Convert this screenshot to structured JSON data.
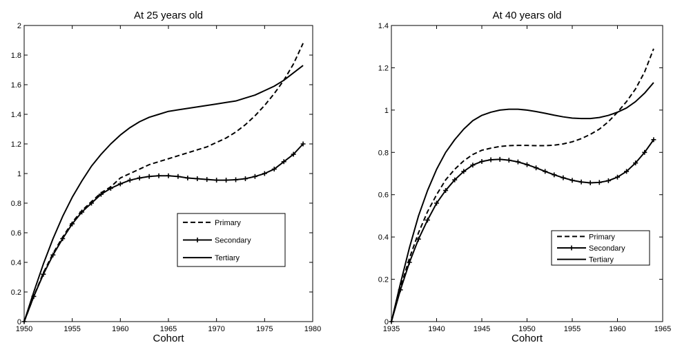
{
  "chart_data": [
    {
      "type": "line",
      "title": "At 25 years old",
      "xlabel": "Cohort",
      "ylabel": "",
      "xlim": [
        1950,
        1980
      ],
      "ylim": [
        0,
        2
      ],
      "xticks": [
        "1950",
        "1955",
        "1960",
        "1965",
        "1970",
        "1975",
        "1980"
      ],
      "yticks": [
        "0",
        "0.2",
        "0.4",
        "0.6",
        "0.8",
        "1",
        "1.2",
        "1.4",
        "1.6",
        "1.8",
        "2"
      ],
      "grid": false,
      "legend_position": "right",
      "series": [
        {
          "name": "Primary",
          "style": "dashed",
          "x": [
            1950,
            1951,
            1952,
            1953,
            1954,
            1955,
            1956,
            1957,
            1958,
            1959,
            1960,
            1961,
            1962,
            1963,
            1964,
            1965,
            1966,
            1967,
            1968,
            1969,
            1970,
            1971,
            1972,
            1973,
            1974,
            1975,
            1976,
            1977,
            1978,
            1979
          ],
          "values": [
            0.0,
            0.17,
            0.33,
            0.46,
            0.57,
            0.67,
            0.75,
            0.81,
            0.87,
            0.91,
            0.97,
            1.0,
            1.03,
            1.06,
            1.08,
            1.1,
            1.12,
            1.14,
            1.16,
            1.18,
            1.21,
            1.24,
            1.28,
            1.33,
            1.39,
            1.46,
            1.54,
            1.63,
            1.74,
            1.88
          ]
        },
        {
          "name": "Secondary",
          "style": "solid-markers",
          "x": [
            1950,
            1951,
            1952,
            1953,
            1954,
            1955,
            1956,
            1957,
            1958,
            1959,
            1960,
            1961,
            1962,
            1963,
            1964,
            1965,
            1966,
            1967,
            1968,
            1969,
            1970,
            1971,
            1972,
            1973,
            1974,
            1975,
            1976,
            1977,
            1978,
            1979
          ],
          "values": [
            0.0,
            0.17,
            0.32,
            0.45,
            0.56,
            0.66,
            0.74,
            0.8,
            0.86,
            0.9,
            0.93,
            0.955,
            0.97,
            0.98,
            0.985,
            0.985,
            0.98,
            0.97,
            0.965,
            0.96,
            0.955,
            0.955,
            0.958,
            0.965,
            0.98,
            1.0,
            1.03,
            1.08,
            1.13,
            1.2
          ]
        },
        {
          "name": "Tertiary",
          "style": "solid",
          "x": [
            1950,
            1951,
            1952,
            1953,
            1954,
            1955,
            1956,
            1957,
            1958,
            1959,
            1960,
            1961,
            1962,
            1963,
            1964,
            1965,
            1966,
            1967,
            1968,
            1969,
            1970,
            1971,
            1972,
            1973,
            1974,
            1975,
            1976,
            1977,
            1978,
            1979
          ],
          "values": [
            0.0,
            0.2,
            0.39,
            0.56,
            0.71,
            0.84,
            0.95,
            1.05,
            1.13,
            1.2,
            1.26,
            1.31,
            1.35,
            1.38,
            1.4,
            1.42,
            1.43,
            1.44,
            1.45,
            1.46,
            1.47,
            1.48,
            1.49,
            1.51,
            1.53,
            1.56,
            1.59,
            1.63,
            1.68,
            1.73
          ]
        }
      ]
    },
    {
      "type": "line",
      "title": "At 40 years old",
      "xlabel": "Cohort",
      "ylabel": "",
      "xlim": [
        1935,
        1965
      ],
      "ylim": [
        0,
        1.4
      ],
      "xticks": [
        "1935",
        "1940",
        "1945",
        "1950",
        "1955",
        "1960",
        "1965"
      ],
      "yticks": [
        "0",
        "0.2",
        "0.4",
        "0.6",
        "0.8",
        "1",
        "1.2",
        "1.4"
      ],
      "grid": false,
      "legend_position": "right",
      "series": [
        {
          "name": "Primary",
          "style": "dashed",
          "x": [
            1935,
            1936,
            1937,
            1938,
            1939,
            1940,
            1941,
            1942,
            1943,
            1944,
            1945,
            1946,
            1947,
            1948,
            1949,
            1950,
            1951,
            1952,
            1953,
            1954,
            1955,
            1956,
            1957,
            1958,
            1959,
            1960,
            1961,
            1962,
            1963,
            1964
          ],
          "values": [
            0.0,
            0.16,
            0.3,
            0.42,
            0.52,
            0.6,
            0.67,
            0.72,
            0.76,
            0.79,
            0.81,
            0.82,
            0.828,
            0.832,
            0.833,
            0.833,
            0.832,
            0.832,
            0.834,
            0.84,
            0.85,
            0.865,
            0.885,
            0.91,
            0.945,
            0.99,
            1.04,
            1.1,
            1.18,
            1.29
          ]
        },
        {
          "name": "Secondary",
          "style": "solid-markers",
          "x": [
            1935,
            1936,
            1937,
            1938,
            1939,
            1940,
            1941,
            1942,
            1943,
            1944,
            1945,
            1946,
            1947,
            1948,
            1949,
            1950,
            1951,
            1952,
            1953,
            1954,
            1955,
            1956,
            1957,
            1958,
            1959,
            1960,
            1961,
            1962,
            1963,
            1964
          ],
          "values": [
            0.0,
            0.15,
            0.28,
            0.39,
            0.48,
            0.56,
            0.62,
            0.67,
            0.71,
            0.74,
            0.757,
            0.765,
            0.767,
            0.763,
            0.755,
            0.742,
            0.727,
            0.71,
            0.694,
            0.68,
            0.668,
            0.66,
            0.656,
            0.658,
            0.666,
            0.683,
            0.71,
            0.75,
            0.8,
            0.86
          ]
        },
        {
          "name": "Tertiary",
          "style": "solid",
          "x": [
            1935,
            1936,
            1937,
            1938,
            1939,
            1940,
            1941,
            1942,
            1943,
            1944,
            1945,
            1946,
            1947,
            1948,
            1949,
            1950,
            1951,
            1952,
            1953,
            1954,
            1955,
            1956,
            1957,
            1958,
            1959,
            1960,
            1961,
            1962,
            1963,
            1964
          ],
          "values": [
            0.0,
            0.18,
            0.35,
            0.5,
            0.62,
            0.72,
            0.8,
            0.86,
            0.91,
            0.95,
            0.975,
            0.99,
            1.0,
            1.004,
            1.004,
            1.0,
            0.993,
            0.985,
            0.976,
            0.968,
            0.962,
            0.96,
            0.96,
            0.965,
            0.975,
            0.99,
            1.01,
            1.04,
            1.08,
            1.13
          ]
        }
      ]
    }
  ]
}
